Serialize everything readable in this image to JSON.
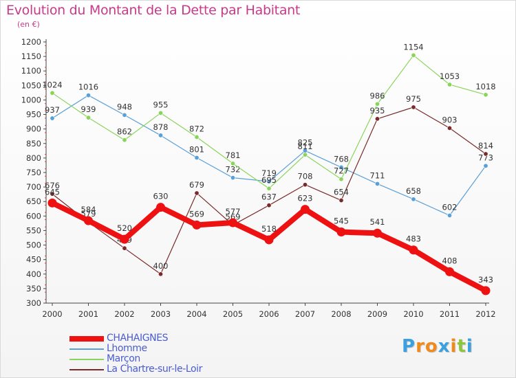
{
  "title": "Evolution du Montant de la Dette par Habitant",
  "subtitle": "(en €)",
  "chart_data": {
    "type": "line",
    "x": [
      "2000",
      "2001",
      "2002",
      "2003",
      "2004",
      "2005",
      "2006",
      "2007",
      "2008",
      "2009",
      "2010",
      "2011",
      "2012"
    ],
    "ylim": [
      300,
      1200
    ],
    "yticks": [
      300,
      350,
      400,
      450,
      500,
      550,
      600,
      650,
      700,
      750,
      800,
      850,
      900,
      950,
      1000,
      1050,
      1100,
      1150,
      1200
    ],
    "grid": false,
    "legend_position": "bottom-left",
    "series": [
      {
        "name": "CHAHAIGNES",
        "color": "#ee1111",
        "values": [
          645,
          584,
          520,
          630,
          569,
          577,
          518,
          623,
          545,
          541,
          483,
          408,
          343
        ]
      },
      {
        "name": "Lhomme",
        "color": "#5a9fd6",
        "values": [
          937,
          1016,
          948,
          878,
          801,
          732,
          719,
          825,
          768,
          711,
          658,
          602,
          773
        ]
      },
      {
        "name": "Marçon",
        "color": "#8bd45a",
        "values": [
          1024,
          939,
          862,
          955,
          872,
          781,
          695,
          811,
          727,
          986,
          1154,
          1053,
          1018
        ]
      },
      {
        "name": "La Chartre-sur-le-Loir",
        "color": "#7a2a2a",
        "values": [
          676,
          579,
          489,
          400,
          679,
          569,
          637,
          708,
          654,
          935,
          975,
          903,
          814
        ]
      }
    ]
  },
  "logo": {
    "letters": [
      "P",
      "r",
      "o",
      "x",
      "i",
      "t",
      "i"
    ],
    "colors": [
      "#3aa0e0",
      "#f08a1c",
      "#f08a1c",
      "#3aa0e0",
      "#f08a1c",
      "#8cc63f",
      "#3aa0e0"
    ]
  }
}
